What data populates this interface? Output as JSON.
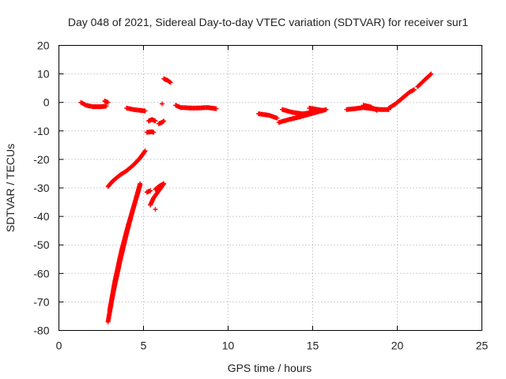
{
  "chart_data": {
    "type": "scatter",
    "title": "Day 048 of 2021, Sidereal Day-to-day VTEC variation (SDTVAR) for receiver sur1",
    "xlabel": "GPS time / hours",
    "ylabel": "SDTVAR / TECUs",
    "xlim": [
      0,
      25
    ],
    "ylim": [
      -80,
      20
    ],
    "xticks": [
      "0",
      "5",
      "10",
      "15",
      "20",
      "25"
    ],
    "yticks": [
      "20",
      "10",
      "0",
      "-10",
      "-20",
      "-30",
      "-40",
      "-50",
      "-60",
      "-70",
      "-80"
    ],
    "grid": true,
    "marker": "plus",
    "color": "#ff0000",
    "segments": [
      {
        "x": [
          1.3,
          1.6,
          2.0,
          2.5,
          2.8
        ],
        "y": [
          0.0,
          -1.0,
          -1.5,
          -1.5,
          -1.3
        ]
      },
      {
        "x": [
          2.7,
          2.9
        ],
        "y": [
          0.5,
          0.0
        ]
      },
      {
        "x": [
          2.9,
          3.2,
          3.6,
          4.0,
          4.4,
          4.8,
          5.1
        ],
        "y": [
          -29.5,
          -27.5,
          -25.5,
          -24.0,
          -22.0,
          -19.5,
          -17.0
        ]
      },
      {
        "x": [
          2.9,
          3.2,
          3.6,
          4.0,
          4.4,
          4.8
        ],
        "y": [
          -77.0,
          -67.0,
          -56.0,
          -46.0,
          -37.0,
          -29.0
        ]
      },
      {
        "x": [
          3.0,
          3.3,
          3.7,
          4.1,
          4.5,
          4.8
        ],
        "y": [
          -73.0,
          -63.0,
          -52.0,
          -43.0,
          -35.0,
          -28.5
        ]
      },
      {
        "x": [
          4.0,
          4.4,
          4.8,
          5.1
        ],
        "y": [
          -2.0,
          -2.5,
          -2.8,
          -3.0
        ]
      },
      {
        "x": [
          5.3,
          5.5,
          5.7
        ],
        "y": [
          -6.5,
          -6.0,
          -6.5
        ]
      },
      {
        "x": [
          5.9,
          6.1,
          6.2
        ],
        "y": [
          -7.5,
          -7.0,
          -6.5
        ]
      },
      {
        "x": [
          5.2,
          5.5,
          5.6
        ],
        "y": [
          -10.5,
          -10.3,
          -10.5
        ]
      },
      {
        "x": [
          5.2,
          5.4
        ],
        "y": [
          -31.5,
          -31.0
        ]
      },
      {
        "x": [
          5.4,
          5.6,
          5.9,
          6.2
        ],
        "y": [
          -36.0,
          -33.5,
          -31.0,
          -28.5
        ]
      },
      {
        "x": [
          5.7,
          5.9,
          6.1,
          6.2
        ],
        "y": [
          -30.5,
          -29.5,
          -28.8,
          -28.5
        ]
      },
      {
        "x": [
          5.7
        ],
        "y": [
          -37.5
        ]
      },
      {
        "x": [
          6.1
        ],
        "y": [
          -0.5
        ]
      },
      {
        "x": [
          6.2,
          6.4,
          6.6
        ],
        "y": [
          8.3,
          7.8,
          7.0
        ]
      },
      {
        "x": [
          6.9,
          7.2,
          8.0,
          8.8,
          9.3
        ],
        "y": [
          -1.0,
          -1.8,
          -2.0,
          -1.8,
          -2.2
        ]
      },
      {
        "x": [
          11.8,
          12.4,
          12.9
        ],
        "y": [
          -4.0,
          -4.5,
          -5.5
        ]
      },
      {
        "x": [
          13.0,
          13.6,
          14.3,
          14.9,
          15.5,
          15.8
        ],
        "y": [
          -7.0,
          -6.0,
          -5.0,
          -4.0,
          -3.0,
          -2.5
        ]
      },
      {
        "x": [
          13.2,
          13.8,
          14.4,
          15.0
        ],
        "y": [
          -2.5,
          -3.5,
          -4.0,
          -3.5
        ]
      },
      {
        "x": [
          14.8,
          15.3,
          15.6
        ],
        "y": [
          -2.0,
          -2.5,
          -2.8
        ]
      },
      {
        "x": [
          17.0,
          17.5,
          18.0,
          18.5,
          19.0,
          19.5
        ],
        "y": [
          -2.5,
          -2.2,
          -1.8,
          -2.2,
          -2.5,
          -2.5
        ]
      },
      {
        "x": [
          18.0,
          18.4,
          18.8
        ],
        "y": [
          -1.0,
          -1.5,
          -2.8
        ]
      },
      {
        "x": [
          19.5,
          19.9,
          20.3,
          20.7,
          21.0
        ],
        "y": [
          -2.0,
          -0.5,
          1.5,
          3.5,
          4.5
        ]
      },
      {
        "x": [
          21.2,
          21.6,
          22.0
        ],
        "y": [
          5.5,
          7.8,
          10.0
        ]
      }
    ]
  }
}
